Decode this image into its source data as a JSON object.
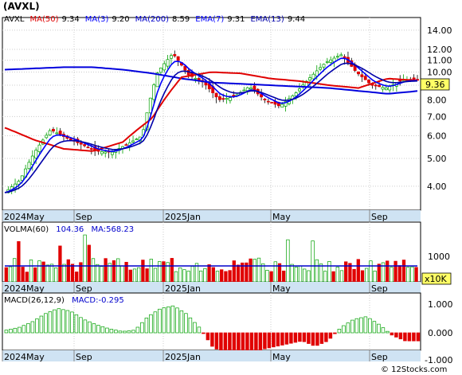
{
  "ticker_title": "(AVXL)",
  "watermark": "© 12Stocks.com",
  "price_panel": {
    "legend": [
      {
        "label": "AVXL",
        "value": "",
        "color": "#000000"
      },
      {
        "label": "MA(50)",
        "value": "9.34",
        "color": "#e00000"
      },
      {
        "label": "MA(3)",
        "value": "9.20",
        "color": "#0000ff"
      },
      {
        "label": "MA(200)",
        "value": "8.59",
        "color": "#0000cc"
      },
      {
        "label": "EMA(7)",
        "value": "9.31",
        "color": "#0000ff"
      },
      {
        "label": "EMA(13)",
        "value": "9.44",
        "color": "#0000aa"
      }
    ],
    "last_price_label": "9.36",
    "y_ticks": [
      "14.00",
      "12.00",
      "11.00",
      "10.00",
      "9.00",
      "8.00",
      "7.00",
      "6.00",
      "5.00",
      "4.00"
    ],
    "x_labels": [
      "2024May",
      "Sep",
      "2025Jan",
      "May",
      "Sep"
    ]
  },
  "volume_panel": {
    "legend": "VOLMA(60)",
    "legend_value": "104.36",
    "ma_label": "MA:568.23",
    "y_ticks": [
      "1000"
    ],
    "unit_badge": "x10K",
    "x_labels": [
      "2024May",
      "Sep",
      "2025Jan",
      "May",
      "Sep"
    ]
  },
  "macd_panel": {
    "legend": "MACD(26,12,9)",
    "macd_label": "MACD:-0.295",
    "y_ticks": [
      "1.000",
      "0.000",
      "-1.000"
    ],
    "x_labels": [
      "2024May",
      "Sep",
      "2025Jan",
      "May",
      "Sep"
    ]
  },
  "colors": {
    "up": "#00a000",
    "down": "#e00000",
    "ma_red": "#e00000",
    "ma_blue": "#0000ff",
    "axis_band": "#cfe3f3"
  },
  "chart_data": [
    {
      "type": "candlestick",
      "title": "(AVXL)",
      "x_labels": [
        "2024May",
        "Sep",
        "2025Jan",
        "May",
        "Sep"
      ],
      "yscale": "log",
      "ylim": [
        3.3,
        15.5
      ],
      "close_approx": [
        3.8,
        4.2,
        5.3,
        6.3,
        5.9,
        5.6,
        5.3,
        5.25,
        5.6,
        6.0,
        10.0,
        11.6,
        9.8,
        9.2,
        8.0,
        8.2,
        8.9,
        8.0,
        7.6,
        8.4,
        9.6,
        10.8,
        11.5,
        10.0,
        9.0,
        8.8,
        9.4,
        9.36
      ],
      "ma200_approx": [
        10.2,
        10.3,
        10.4,
        10.4,
        10.2,
        9.9,
        9.5,
        9.2,
        9.1,
        9.0,
        8.9,
        8.8,
        8.6,
        8.4,
        8.59
      ],
      "ma50_approx": [
        6.4,
        5.8,
        5.4,
        5.3,
        5.7,
        6.9,
        9.6,
        10.0,
        9.9,
        9.5,
        9.3,
        9.0,
        8.8,
        9.5,
        9.34
      ]
    },
    {
      "type": "bar",
      "title": "VOLMA(60)",
      "unit": "x10K",
      "ma_value": 568.23,
      "last_value": 104.36
    },
    {
      "type": "bar",
      "title": "MACD(26,12,9)",
      "last_value": -0.295,
      "ylim": [
        -1.2,
        1.2
      ]
    }
  ]
}
